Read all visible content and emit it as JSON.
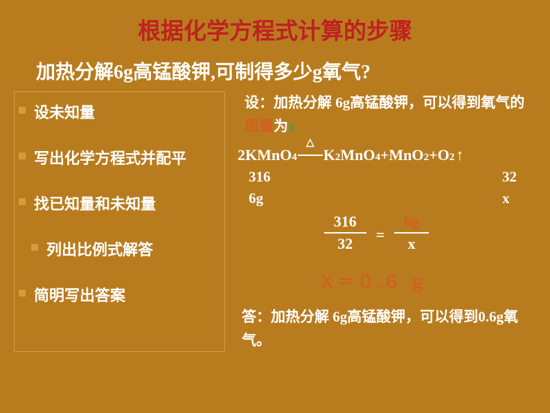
{
  "colors": {
    "background": "#b87c1f",
    "title": "#c02020",
    "text": "#ffffff",
    "bullet": "#d99a3a",
    "highlight": "#d06020",
    "variable": "#4a9a4a",
    "border": "#d0a050"
  },
  "title": "根据化学方程式计算的步骤",
  "subtitle": "加热分解6g高锰酸钾,可制得多少g氧气?",
  "steps": [
    {
      "text": "设未知量",
      "indent": false
    },
    {
      "text": "写出化学方程式并配平",
      "indent": false
    },
    {
      "text": "找已知量和未知量",
      "indent": false
    },
    {
      "text": "列出比例式解答",
      "indent": true
    },
    {
      "text": "简明写出答案",
      "indent": false
    }
  ],
  "assumption": {
    "prefix": "设：加热分解 6g高锰酸钾，可以得到氧气的",
    "highlight": "质量",
    "mid": "为",
    "var": "x"
  },
  "equation": {
    "reactant": "2KMnO",
    "reactant_sub": "4",
    "condition": "△",
    "p1": "K",
    "p1_sub1": "2",
    "p1_mid": "MnO",
    "p1_sub2": "4",
    "plus1": "+MnO",
    "p2_sub": "2",
    "plus2": " +O",
    "p3_sub": "2",
    "arrow": "↑"
  },
  "molar": {
    "m1": "316",
    "m2": "32"
  },
  "given": {
    "g1": "6g",
    "g2": "x"
  },
  "proportion": {
    "num1": "316",
    "den1": "32",
    "num2": "6g",
    "den2": "x"
  },
  "result": "Ｘ＝０.６ ｇ",
  "answer": "答：加热分解 6g高锰酸钾，可以得到0.6g氧气。"
}
